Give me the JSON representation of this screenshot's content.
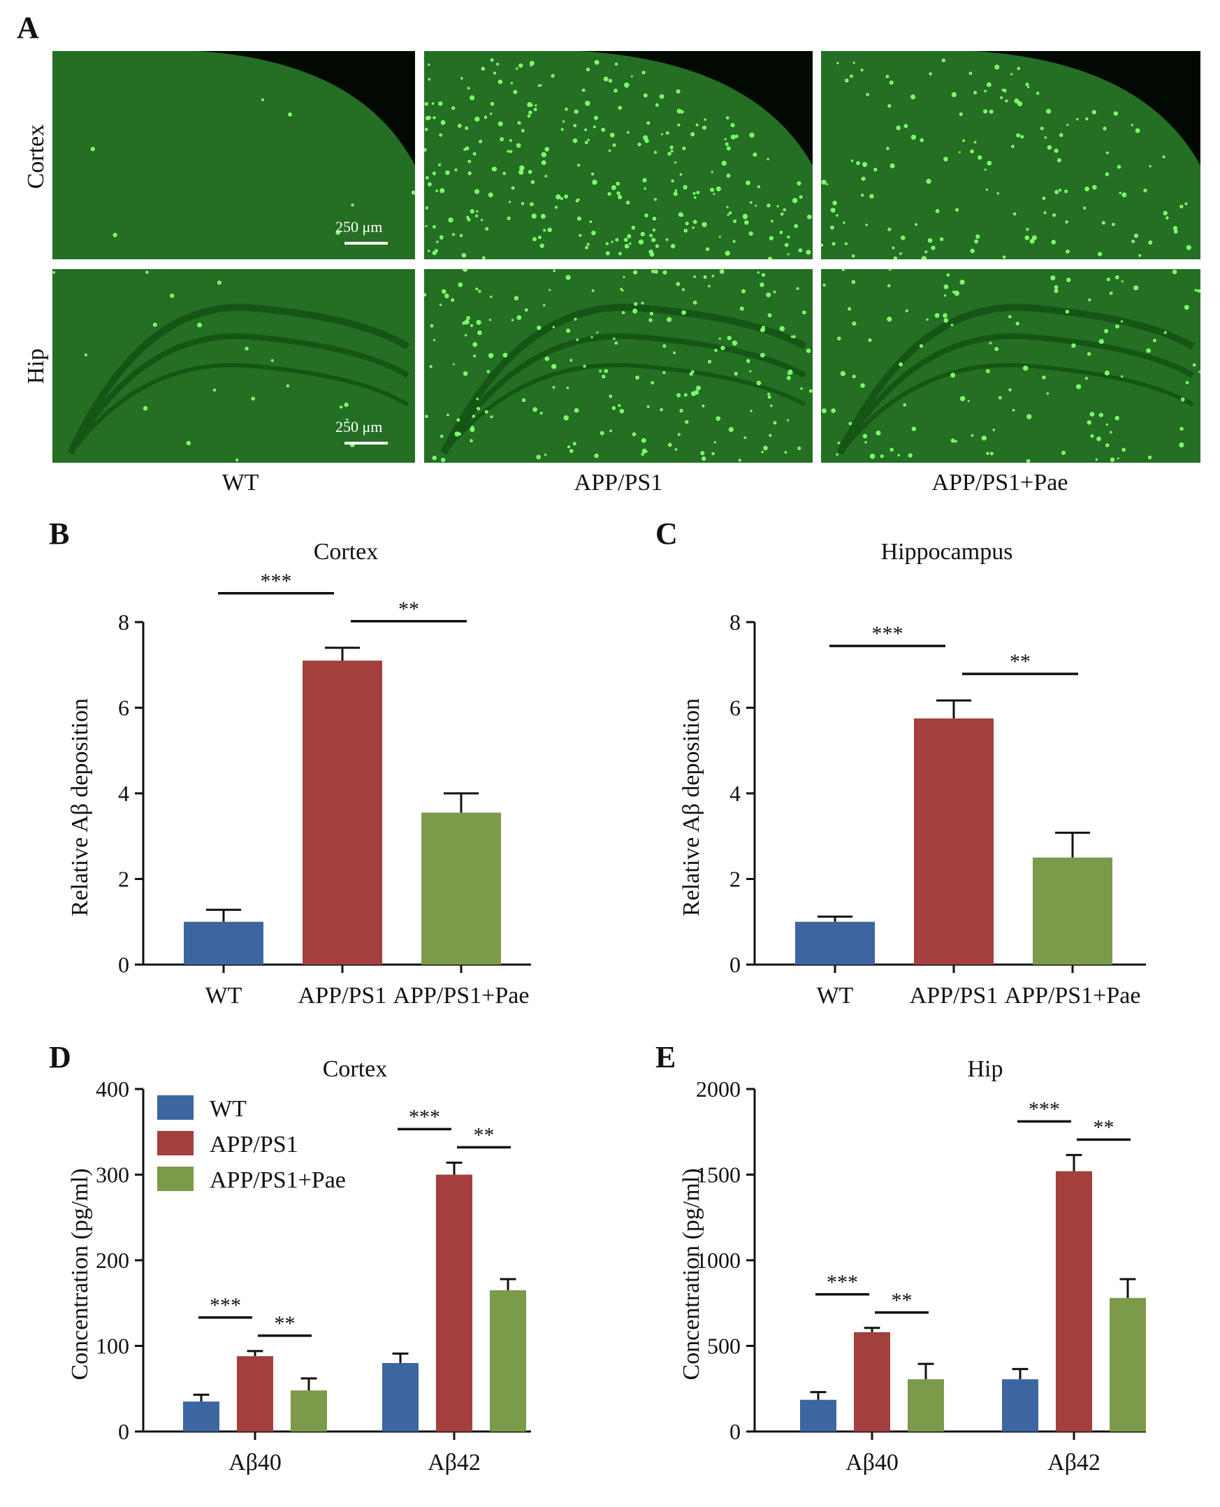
{
  "panel_a": {
    "label": "A",
    "rows": [
      "Cortex",
      "Hip"
    ],
    "columns": [
      "WT",
      "APP/PS1",
      "APP/PS1+Pae"
    ],
    "scale_bar": "250 μm",
    "plaque_density": [
      [
        0.02,
        0.85,
        0.45
      ],
      [
        0.05,
        0.5,
        0.3
      ]
    ]
  },
  "chart_data": [
    {
      "panel": "B",
      "type": "bar",
      "title": "Cortex",
      "ylabel": "Relative Aβ deposition",
      "xlabel": "",
      "categories": [
        "WT",
        "APP/PS1",
        "APP/PS1+Pae"
      ],
      "values": [
        1.0,
        7.1,
        3.55
      ],
      "errors": [
        0.28,
        0.3,
        0.45
      ],
      "colors": [
        "#3d65a0",
        "#a33f3c",
        "#7b9a4a"
      ],
      "ylim": [
        0,
        8
      ],
      "yticks": [
        "0",
        "2",
        "4",
        "6",
        "8"
      ],
      "significance": [
        {
          "from": 0,
          "to": 1,
          "label": "***"
        },
        {
          "from": 1,
          "to": 2,
          "label": "**"
        }
      ]
    },
    {
      "panel": "C",
      "type": "bar",
      "title": "Hippocampus",
      "ylabel": "Relative Aβ deposition",
      "xlabel": "",
      "categories": [
        "WT",
        "APP/PS1",
        "APP/PS1+Pae"
      ],
      "values": [
        1.0,
        5.75,
        2.5
      ],
      "errors": [
        0.12,
        0.42,
        0.58
      ],
      "colors": [
        "#3d65a0",
        "#a33f3c",
        "#7b9a4a"
      ],
      "ylim": [
        0,
        8
      ],
      "yticks": [
        "0",
        "2",
        "4",
        "6",
        "8"
      ],
      "significance": [
        {
          "from": 0,
          "to": 1,
          "label": "***"
        },
        {
          "from": 1,
          "to": 2,
          "label": "**"
        }
      ]
    },
    {
      "panel": "D",
      "type": "bar",
      "title": "Cortex",
      "ylabel": "Concentration (pg/ml)",
      "xlabel": "",
      "categories": [
        "Aβ40",
        "Aβ42"
      ],
      "series": [
        {
          "name": "WT",
          "color": "#3d65a0",
          "values": [
            35,
            80
          ],
          "errors": [
            8,
            11
          ]
        },
        {
          "name": "APP/PS1",
          "color": "#a33f3c",
          "values": [
            88,
            300
          ],
          "errors": [
            6,
            14
          ]
        },
        {
          "name": "APP/PS1+Pae",
          "color": "#7b9a4a",
          "values": [
            48,
            165
          ],
          "errors": [
            14,
            13
          ]
        }
      ],
      "ylim": [
        0,
        400
      ],
      "yticks": [
        "0",
        "100",
        "200",
        "300",
        "400"
      ],
      "legend": "top-left",
      "significance": [
        {
          "category": 0,
          "from": 0,
          "to": 1,
          "label": "***"
        },
        {
          "category": 0,
          "from": 1,
          "to": 2,
          "label": "**"
        },
        {
          "category": 1,
          "from": 0,
          "to": 1,
          "label": "***"
        },
        {
          "category": 1,
          "from": 1,
          "to": 2,
          "label": "**"
        }
      ]
    },
    {
      "panel": "E",
      "type": "bar",
      "title": "Hip",
      "ylabel": "Concentration (pg/ml)",
      "xlabel": "",
      "categories": [
        "Aβ40",
        "Aβ42"
      ],
      "series": [
        {
          "name": "WT",
          "color": "#3d65a0",
          "values": [
            185,
            305
          ],
          "errors": [
            45,
            60
          ]
        },
        {
          "name": "APP/PS1",
          "color": "#a33f3c",
          "values": [
            580,
            1520
          ],
          "errors": [
            25,
            95
          ]
        },
        {
          "name": "APP/PS1+Pae",
          "color": "#7b9a4a",
          "values": [
            305,
            780
          ],
          "errors": [
            90,
            110
          ]
        }
      ],
      "ylim": [
        0,
        2000
      ],
      "yticks": [
        "0",
        "500",
        "1000",
        "1500",
        "2000"
      ],
      "significance": [
        {
          "category": 0,
          "from": 0,
          "to": 1,
          "label": "***"
        },
        {
          "category": 0,
          "from": 1,
          "to": 2,
          "label": "**"
        },
        {
          "category": 1,
          "from": 0,
          "to": 1,
          "label": "***"
        },
        {
          "category": 1,
          "from": 1,
          "to": 2,
          "label": "**"
        }
      ]
    }
  ]
}
